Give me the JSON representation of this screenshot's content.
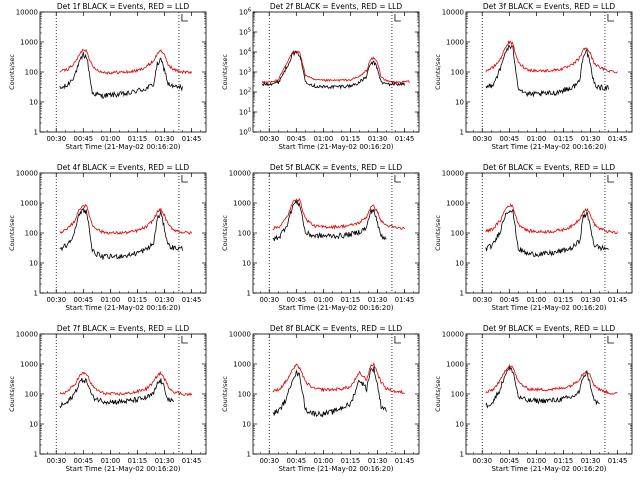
{
  "colors": {
    "events": "#000000",
    "lld": "#e00000",
    "axis": "#000000"
  },
  "chart_data": [
    {
      "type": "line",
      "title": "Det 1f BLACK = Events, RED = LLD",
      "xlabel": "Start Time (21-May-02 00:16:20)",
      "ylabel": "Counts/sec",
      "yscale": "log",
      "ylim": [
        1,
        10000
      ],
      "ytick_labels": [
        "1",
        "10",
        "100",
        "1000",
        "10000"
      ],
      "xtick_labels": [
        "00:30",
        "00:45",
        "01:00",
        "01:15",
        "01:30",
        "01:45"
      ],
      "x_min": [
        "00:26",
        "00:30",
        "00:45",
        "01:00",
        "01:15",
        "01:30",
        "01:48"
      ],
      "x": [
        "00:32",
        "00:36",
        "00:40",
        "00:43",
        "00:45",
        "00:47",
        "00:50",
        "00:55",
        "01:00",
        "01:05",
        "01:10",
        "01:15",
        "01:20",
        "01:24",
        "01:26",
        "01:28",
        "01:30",
        "01:32",
        "01:35",
        "01:40",
        "01:45"
      ],
      "series": [
        {
          "name": "Events",
          "values": [
            28,
            35,
            75,
            210,
            380,
            300,
            20,
            16,
            17,
            18,
            19,
            24,
            28,
            40,
            180,
            250,
            120,
            40,
            32,
            30,
            null
          ]
        },
        {
          "name": "LLD",
          "values": [
            105,
            120,
            190,
            380,
            580,
            500,
            150,
            100,
            95,
            98,
            100,
            110,
            150,
            240,
            400,
            550,
            350,
            180,
            120,
            100,
            95
          ]
        }
      ],
      "x_markers": [
        "00:30",
        "01:38"
      ]
    },
    {
      "type": "line",
      "title": "Det 2f BLACK = Events, RED = LLD",
      "xlabel": "Start Time (21-May-02 00:16:20)",
      "ylabel": "Counts/sec",
      "yscale": "log",
      "ylim": [
        1,
        1000000
      ],
      "ytick_labels": [
        "10^0",
        "10^1",
        "10^2",
        "10^3",
        "10^4",
        "10^5",
        "10^6"
      ],
      "xtick_labels": [
        "00:30",
        "00:45",
        "01:00",
        "01:15",
        "01:30",
        "01:45"
      ],
      "x": [
        "00:26",
        "00:30",
        "00:35",
        "00:40",
        "00:43",
        "00:45",
        "00:47",
        "00:50",
        "00:55",
        "01:00",
        "01:05",
        "01:10",
        "01:15",
        "01:20",
        "01:24",
        "01:26",
        "01:28",
        "01:30",
        "01:32",
        "01:35",
        "01:40",
        "01:45",
        "01:48"
      ],
      "series": [
        {
          "name": "Events",
          "values": [
            250,
            260,
            300,
            2000,
            8000,
            9000,
            7000,
            350,
            200,
            180,
            180,
            190,
            200,
            300,
            600,
            2500,
            3000,
            1500,
            300,
            250,
            250,
            250,
            null
          ]
        },
        {
          "name": "LLD",
          "values": [
            300,
            320,
            400,
            3000,
            10000,
            12000,
            9000,
            700,
            400,
            380,
            380,
            390,
            400,
            600,
            1200,
            4000,
            5000,
            3000,
            600,
            350,
            300,
            320,
            330
          ]
        }
      ],
      "x_markers": [
        "00:30",
        "01:38"
      ]
    },
    {
      "type": "line",
      "title": "Det 3f BLACK = Events, RED = LLD",
      "xlabel": "Start Time (21-May-02 00:16:20)",
      "ylabel": "Counts/sec",
      "yscale": "log",
      "ylim": [
        1,
        10000
      ],
      "ytick_labels": [
        "1",
        "10",
        "100",
        "1000",
        "10000"
      ],
      "xtick_labels": [
        "00:30",
        "00:45",
        "01:00",
        "01:15",
        "01:30",
        "01:45"
      ],
      "x": [
        "00:32",
        "00:36",
        "00:40",
        "00:43",
        "00:45",
        "00:47",
        "00:50",
        "00:55",
        "01:00",
        "01:05",
        "01:10",
        "01:15",
        "01:20",
        "01:24",
        "01:26",
        "01:28",
        "01:30",
        "01:32",
        "01:35",
        "01:40",
        "01:45"
      ],
      "series": [
        {
          "name": "Events",
          "values": [
            30,
            40,
            120,
            500,
            700,
            600,
            30,
            18,
            18,
            19,
            20,
            25,
            30,
            50,
            400,
            500,
            150,
            40,
            30,
            30,
            null
          ]
        },
        {
          "name": "LLD",
          "values": [
            110,
            140,
            260,
            700,
            1000,
            850,
            200,
            120,
            110,
            110,
            115,
            130,
            170,
            300,
            550,
            650,
            400,
            200,
            140,
            110,
            100
          ]
        }
      ],
      "x_markers": [
        "00:30",
        "01:38"
      ]
    },
    {
      "type": "line",
      "title": "Det 4f BLACK = Events, RED = LLD",
      "xlabel": "Start Time (21-May-02 00:16:20)",
      "ylabel": "Counts/sec",
      "yscale": "log",
      "ylim": [
        1,
        10000
      ],
      "ytick_labels": [
        "1",
        "10",
        "100",
        "1000",
        "10000"
      ],
      "xtick_labels": [
        "00:30",
        "00:45",
        "01:00",
        "01:15",
        "01:30",
        "01:45"
      ],
      "x": [
        "00:32",
        "00:36",
        "00:40",
        "00:43",
        "00:45",
        "00:47",
        "00:50",
        "00:55",
        "01:00",
        "01:05",
        "01:10",
        "01:15",
        "01:20",
        "01:24",
        "01:26",
        "01:28",
        "01:30",
        "01:32",
        "01:35",
        "01:40",
        "01:45"
      ],
      "series": [
        {
          "name": "Events",
          "values": [
            30,
            40,
            100,
            450,
            600,
            500,
            25,
            16,
            16,
            17,
            18,
            22,
            28,
            45,
            300,
            450,
            140,
            40,
            32,
            30,
            null
          ]
        },
        {
          "name": "LLD",
          "values": [
            105,
            130,
            240,
            650,
            850,
            750,
            180,
            110,
            100,
            100,
            105,
            120,
            160,
            280,
            500,
            600,
            380,
            190,
            130,
            105,
            100
          ]
        }
      ],
      "x_markers": [
        "00:30",
        "01:38"
      ]
    },
    {
      "type": "line",
      "title": "Det 5f BLACK = Events, RED = LLD",
      "xlabel": "Start Time (21-May-02 00:16:20)",
      "ylabel": "Counts/sec",
      "yscale": "log",
      "ylim": [
        1,
        10000
      ],
      "ytick_labels": [
        "1",
        "10",
        "100",
        "1000",
        "10000"
      ],
      "xtick_labels": [
        "00:30",
        "00:45",
        "01:00",
        "01:15",
        "01:30",
        "01:45"
      ],
      "x": [
        "00:32",
        "00:36",
        "00:40",
        "00:43",
        "00:45",
        "00:47",
        "00:50",
        "00:55",
        "01:00",
        "01:05",
        "01:10",
        "01:15",
        "01:20",
        "01:24",
        "01:26",
        "01:28",
        "01:30",
        "01:32",
        "01:35",
        "01:40",
        "01:45"
      ],
      "series": [
        {
          "name": "Events",
          "values": [
            60,
            80,
            200,
            800,
            1100,
            900,
            100,
            80,
            80,
            80,
            80,
            90,
            110,
            150,
            500,
            600,
            200,
            80,
            70,
            null,
            null
          ]
        },
        {
          "name": "LLD",
          "values": [
            140,
            170,
            350,
            1000,
            1400,
            1200,
            300,
            170,
            160,
            160,
            165,
            180,
            220,
            350,
            700,
            800,
            500,
            250,
            180,
            150,
            140
          ]
        }
      ],
      "x_markers": [
        "00:30",
        "01:38"
      ]
    },
    {
      "type": "line",
      "title": "Det 6f BLACK = Events, RED = LLD",
      "xlabel": "Start Time (21-May-02 00:16:20)",
      "ylabel": "Counts/sec",
      "yscale": "log",
      "ylim": [
        1,
        10000
      ],
      "ytick_labels": [
        "1",
        "10",
        "100",
        "1000",
        "10000"
      ],
      "xtick_labels": [
        "00:30",
        "00:45",
        "01:00",
        "01:15",
        "01:30",
        "01:45"
      ],
      "x": [
        "00:32",
        "00:36",
        "00:40",
        "00:43",
        "00:45",
        "00:47",
        "00:50",
        "00:55",
        "01:00",
        "01:05",
        "01:10",
        "01:15",
        "01:20",
        "01:24",
        "01:26",
        "01:28",
        "01:30",
        "01:32",
        "01:35",
        "01:40",
        "01:45"
      ],
      "series": [
        {
          "name": "Events",
          "values": [
            30,
            40,
            120,
            450,
            600,
            500,
            30,
            20,
            20,
            20,
            22,
            26,
            32,
            55,
            350,
            450,
            160,
            40,
            32,
            30,
            null
          ]
        },
        {
          "name": "LLD",
          "values": [
            110,
            140,
            260,
            650,
            850,
            750,
            200,
            120,
            110,
            110,
            115,
            130,
            170,
            300,
            520,
            620,
            400,
            200,
            140,
            110,
            100
          ]
        }
      ],
      "x_markers": [
        "00:30",
        "01:38"
      ]
    },
    {
      "type": "line",
      "title": "Det 7f BLACK = Events, RED = LLD",
      "xlabel": "Start Time (21-May-02 00:16:20)",
      "ylabel": "Counts/sec",
      "yscale": "log",
      "ylim": [
        1,
        10000
      ],
      "ytick_labels": [
        "1",
        "10",
        "100",
        "1000",
        "10000"
      ],
      "xtick_labels": [
        "00:30",
        "00:45",
        "01:00",
        "01:15",
        "01:30",
        "01:45"
      ],
      "x": [
        "00:32",
        "00:36",
        "00:40",
        "00:43",
        "00:45",
        "00:47",
        "00:50",
        "00:55",
        "01:00",
        "01:05",
        "01:10",
        "01:15",
        "01:20",
        "01:24",
        "01:26",
        "01:28",
        "01:30",
        "01:32",
        "01:35",
        "01:40",
        "01:45"
      ],
      "series": [
        {
          "name": "Events",
          "values": [
            40,
            50,
            100,
            250,
            300,
            260,
            80,
            60,
            55,
            55,
            58,
            65,
            75,
            100,
            220,
            280,
            150,
            70,
            50,
            null,
            null
          ]
        },
        {
          "name": "LLD",
          "values": [
            100,
            120,
            200,
            400,
            500,
            450,
            180,
            110,
            100,
            100,
            105,
            120,
            150,
            250,
            420,
            500,
            320,
            180,
            120,
            100,
            95
          ]
        }
      ],
      "x_markers": [
        "00:30",
        "01:38"
      ]
    },
    {
      "type": "line",
      "title": "Det 8f BLACK = Events, RED = LLD",
      "xlabel": "Start Time (21-May-02 00:16:20)",
      "ylabel": "Counts/sec",
      "yscale": "log",
      "ylim": [
        1,
        10000
      ],
      "ytick_labels": [
        "1",
        "10",
        "100",
        "1000",
        "10000"
      ],
      "xtick_labels": [
        "00:30",
        "00:45",
        "01:00",
        "01:15",
        "01:30",
        "01:45"
      ],
      "x": [
        "00:32",
        "00:36",
        "00:40",
        "00:43",
        "00:45",
        "00:47",
        "00:50",
        "00:55",
        "01:00",
        "01:05",
        "01:10",
        "01:15",
        "01:20",
        "01:24",
        "01:26",
        "01:28",
        "01:30",
        "01:32",
        "01:35",
        "01:40",
        "01:45"
      ],
      "series": [
        {
          "name": "Events",
          "values": [
            22,
            30,
            80,
            350,
            500,
            400,
            30,
            22,
            22,
            25,
            35,
            45,
            300,
            150,
            600,
            700,
            200,
            40,
            30,
            null,
            null
          ]
        },
        {
          "name": "LLD",
          "values": [
            120,
            150,
            300,
            650,
            900,
            750,
            250,
            150,
            140,
            140,
            150,
            170,
            500,
            300,
            800,
            1000,
            500,
            250,
            150,
            120,
            110
          ]
        }
      ],
      "x_markers": [
        "00:30",
        "01:38"
      ]
    },
    {
      "type": "line",
      "title": "Det 9f BLACK = Events, RED = LLD",
      "xlabel": "Start Time (21-May-02 00:16:20)",
      "ylabel": "Counts/sec",
      "yscale": "log",
      "ylim": [
        1,
        10000
      ],
      "ytick_labels": [
        "1",
        "10",
        "100",
        "1000",
        "10000"
      ],
      "xtick_labels": [
        "00:30",
        "00:45",
        "01:00",
        "01:15",
        "01:30",
        "01:45"
      ],
      "x": [
        "00:32",
        "00:36",
        "00:40",
        "00:43",
        "00:45",
        "00:47",
        "00:50",
        "00:55",
        "01:00",
        "01:05",
        "01:10",
        "01:15",
        "01:20",
        "01:24",
        "01:26",
        "01:28",
        "01:30",
        "01:32",
        "01:35",
        "01:40",
        "01:45"
      ],
      "series": [
        {
          "name": "Events",
          "values": [
            40,
            55,
            150,
            500,
            700,
            600,
            80,
            60,
            60,
            60,
            62,
            68,
            80,
            120,
            400,
            500,
            200,
            60,
            45,
            null,
            null
          ]
        },
        {
          "name": "LLD",
          "values": [
            110,
            140,
            280,
            650,
            900,
            780,
            250,
            150,
            140,
            140,
            145,
            160,
            200,
            320,
            500,
            600,
            400,
            200,
            140,
            110,
            100
          ]
        }
      ],
      "x_markers": [
        "00:30",
        "01:38"
      ]
    }
  ]
}
